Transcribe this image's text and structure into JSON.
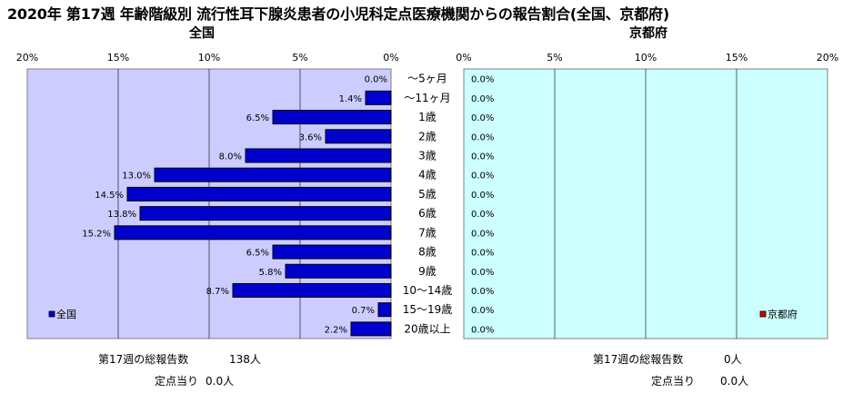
{
  "title": "2020年 第17週 年齢階級別 流行性耳下腺炎患者の小児科定点医療機関からの報告割合(全国、京都府)",
  "chart_data": {
    "type": "bar",
    "categories": [
      "～5ヶ月",
      "～11ヶ月",
      "1歳",
      "2歳",
      "3歳",
      "4歳",
      "5歳",
      "6歳",
      "7歳",
      "8歳",
      "9歳",
      "10～14歳",
      "15～19歳",
      "20歳以上"
    ],
    "panels": [
      {
        "title": "全国",
        "series": [
          {
            "name": "全国",
            "color": "#0000cc",
            "values": [
              0.0,
              1.4,
              6.5,
              3.6,
              8.0,
              13.0,
              14.5,
              13.8,
              15.2,
              6.5,
              5.8,
              8.7,
              0.7,
              2.2
            ]
          }
        ],
        "data_labels": [
          "0.0%",
          "1.4%",
          "6.5%",
          "3.6%",
          "8.0%",
          "13.0%",
          "14.5%",
          "13.8%",
          "15.2%",
          "6.5%",
          "5.8%",
          "8.7%",
          "0.7%",
          "2.2%"
        ],
        "xlim": [
          0,
          20
        ],
        "reversed": true,
        "tick_labels": [
          "20%",
          "15%",
          "10%",
          "5%",
          "0%"
        ],
        "legend_position": "bottom-left"
      },
      {
        "title": "京都府",
        "series": [
          {
            "name": "京都府",
            "color": "#cc0000",
            "values": [
              0,
              0,
              0,
              0,
              0,
              0,
              0,
              0,
              0,
              0,
              0,
              0,
              0,
              0
            ]
          }
        ],
        "data_labels": [
          "0.0%",
          "0.0%",
          "0.0%",
          "0.0%",
          "0.0%",
          "0.0%",
          "0.0%",
          "0.0%",
          "0.0%",
          "0.0%",
          "0.0%",
          "0.0%",
          "0.0%",
          "0.0%"
        ],
        "xlim": [
          0,
          20
        ],
        "reversed": false,
        "tick_labels": [
          "0%",
          "5%",
          "10%",
          "15%",
          "20%"
        ],
        "legend_position": "bottom-right"
      }
    ],
    "grid": true
  },
  "footer": {
    "national": {
      "total_label": "第17週の総報告数",
      "total_value": "138人",
      "per_label": "定点当り",
      "per_value": "0.0人"
    },
    "kyoto": {
      "total_label": "第17週の総報告数",
      "total_value": "0人",
      "per_label": "定点当り",
      "per_value": "0.0人"
    }
  }
}
